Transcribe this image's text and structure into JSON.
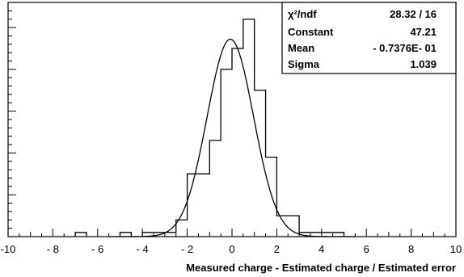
{
  "chart_data": {
    "type": "bar",
    "xlabel": "Measured charge - Estimated charge / Estimated error",
    "ylabel": "",
    "title": "",
    "xlim": [
      -10,
      10
    ],
    "ylim": [
      0,
      56
    ],
    "xticks": [
      "-10",
      "- 8",
      "- 6",
      "- 4",
      "- 2",
      "0",
      "2",
      "4",
      "6",
      "8",
      "10"
    ],
    "bin_width": 0.5,
    "histogram": {
      "bin_lows": [
        -7,
        -5,
        -4,
        -3.5,
        -3,
        -2.5,
        -2,
        -1.5,
        -1,
        -0.5,
        0,
        0.5,
        1,
        1.5,
        2,
        2.5,
        3,
        3.5,
        4,
        4.5
      ],
      "counts": [
        1,
        1,
        1,
        1,
        1,
        4,
        15,
        15,
        23,
        40,
        45,
        52,
        35,
        19,
        5,
        5,
        1,
        1,
        1,
        1
      ]
    },
    "fit": {
      "function": "gaus",
      "constant": 47.21,
      "mean": -0.07376,
      "sigma": 1.039
    },
    "grid": false,
    "legend": "none"
  },
  "stats_box": {
    "rows": [
      {
        "label": "χ²/ndf",
        "value": "28.32   /   16"
      },
      {
        "label": "Constant",
        "value": "47.21"
      },
      {
        "label": "Mean",
        "value": "- 0.7376E- 01"
      },
      {
        "label": "Sigma",
        "value": "1.039"
      }
    ]
  }
}
